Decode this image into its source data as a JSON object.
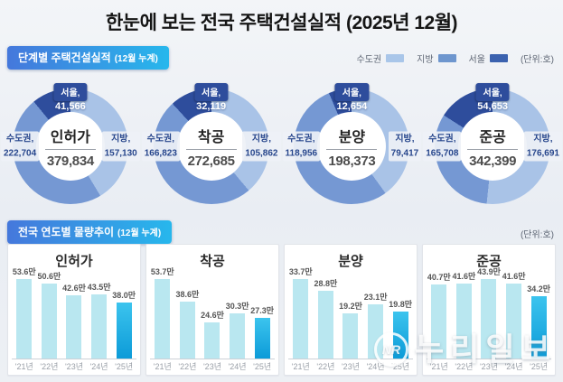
{
  "title": "한눈에 보는 전국 주택건설실적 (2025년 12월)",
  "section_stage": {
    "badge_label": "단계별 주택건설실적",
    "badge_sub": "(12월 누계)",
    "unit": "(단위:호)",
    "legend": [
      {
        "label": "수도권",
        "color": "#a9c6e9"
      },
      {
        "label": "지방",
        "color": "#6e96ce"
      },
      {
        "label": "서울",
        "color": "#3b62af"
      }
    ]
  },
  "section_trend": {
    "badge_label": "전국 연도별 물량추이",
    "badge_sub": "(12월 누계)",
    "unit": "(단위:호)"
  },
  "watermark": {
    "logo": "NR",
    "text": "누리일보"
  },
  "colors": {
    "capital_segment": "#7598d3",
    "province_segment": "#a9c3e7",
    "seoul_segment": "#2e4d9c",
    "bar": "#b9e7f0",
    "bar_highlight_top": "#3cc4ee",
    "bar_highlight_bottom": "#0c9bd8"
  },
  "chart_data": [
    {
      "type": "donut",
      "title": "인허가",
      "unit": "호",
      "total": 379834,
      "total_display": "379,834",
      "capital_label": "수도권,",
      "capital_value": 222704,
      "capital_display": "222,704",
      "province_label": "지방,",
      "province_value": 157130,
      "province_display": "157,130",
      "seoul_label": "서울,",
      "seoul_value": 41566,
      "seoul_display": "41,566"
    },
    {
      "type": "donut",
      "title": "착공",
      "unit": "호",
      "total": 272685,
      "total_display": "272,685",
      "capital_label": "수도권,",
      "capital_value": 166823,
      "capital_display": "166,823",
      "province_label": "지방,",
      "province_value": 105862,
      "province_display": "105,862",
      "seoul_label": "서울,",
      "seoul_value": 32119,
      "seoul_display": "32,119"
    },
    {
      "type": "donut",
      "title": "분양",
      "unit": "호",
      "total": 198373,
      "total_display": "198,373",
      "capital_label": "수도권,",
      "capital_value": 118956,
      "capital_display": "118,956",
      "province_label": "지방,",
      "province_value": 79417,
      "province_display": "79,417",
      "seoul_label": "서울,",
      "seoul_value": 12654,
      "seoul_display": "12,654"
    },
    {
      "type": "donut",
      "title": "준공",
      "unit": "호",
      "total": 342399,
      "total_display": "342,399",
      "capital_label": "수도권,",
      "capital_value": 165708,
      "capital_display": "165,708",
      "province_label": "지방,",
      "province_value": 176691,
      "province_display": "176,691",
      "seoul_label": "서울,",
      "seoul_value": 54653,
      "seoul_display": "54,653"
    },
    {
      "type": "bar",
      "title": "인허가",
      "unit": "만 호",
      "highlight_index": 4,
      "categories": [
        "'21년",
        "'22년",
        "'23년",
        "'24년",
        "'25년"
      ],
      "values": [
        53.6,
        50.6,
        42.6,
        43.5,
        38.0
      ],
      "labels": [
        "53.6만",
        "50.6만",
        "42.6만",
        "43.5만",
        "38.0만"
      ]
    },
    {
      "type": "bar",
      "title": "착공",
      "unit": "만 호",
      "highlight_index": 4,
      "categories": [
        "'21년",
        "'22년",
        "'23년",
        "'24년",
        "'25년"
      ],
      "values": [
        53.7,
        38.6,
        24.6,
        30.3,
        27.3
      ],
      "labels": [
        "53.7만",
        "38.6만",
        "24.6만",
        "30.3만",
        "27.3만"
      ]
    },
    {
      "type": "bar",
      "title": "분양",
      "unit": "만 호",
      "highlight_index": 4,
      "categories": [
        "'21년",
        "'22년",
        "'23년",
        "'24년",
        "'25년"
      ],
      "values": [
        33.7,
        28.8,
        19.2,
        23.1,
        19.8
      ],
      "labels": [
        "33.7만",
        "28.8만",
        "19.2만",
        "23.1만",
        "19.8만"
      ]
    },
    {
      "type": "bar",
      "title": "준공",
      "unit": "만 호",
      "highlight_index": 4,
      "categories": [
        "'21년",
        "'22년",
        "'23년",
        "'24년",
        "'25년"
      ],
      "values": [
        40.7,
        41.6,
        43.9,
        41.6,
        34.2
      ],
      "labels": [
        "40.7만",
        "41.6만",
        "43.9만",
        "41.6만",
        "34.2만"
      ]
    }
  ]
}
